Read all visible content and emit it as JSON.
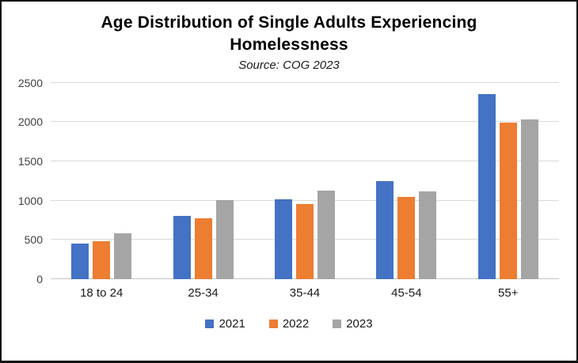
{
  "window": {
    "background": "#ffffff",
    "border_color": "#111111"
  },
  "header": {
    "title": "Age Distribution of Single Adults Experiencing Homelessness",
    "subtitle": "Source: COG 2023"
  },
  "chart_data": {
    "type": "bar",
    "title": "Age Distribution of Single Adults Experiencing Homelessness",
    "subtitle": "Source: COG 2023",
    "categories": [
      "18 to 24",
      "25-34",
      "35-44",
      "45-54",
      "55+"
    ],
    "series": [
      {
        "name": "2021",
        "color": "#4472C4",
        "values": [
          450,
          800,
          1020,
          1250,
          2355
        ]
      },
      {
        "name": "2022",
        "color": "#ED7D31",
        "values": [
          485,
          770,
          950,
          1050,
          1990
        ]
      },
      {
        "name": "2023",
        "color": "#A5A5A5",
        "values": [
          585,
          1005,
          1130,
          1120,
          2030
        ]
      }
    ],
    "xlabel": "",
    "ylabel": "",
    "ylim": [
      0,
      2500
    ],
    "yticks": [
      0,
      500,
      1000,
      1500,
      2000,
      2500
    ],
    "grid": true,
    "gridline_color": "#d9d9d9",
    "legend_position": "bottom"
  }
}
